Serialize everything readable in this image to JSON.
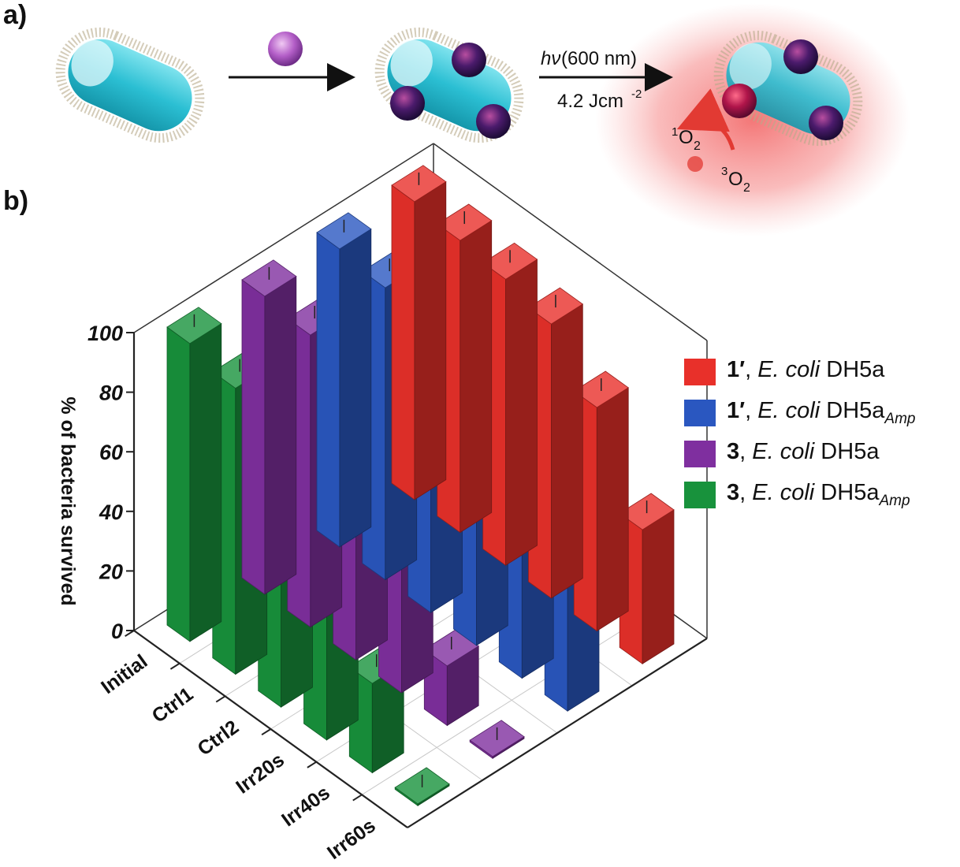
{
  "panel_a": {
    "label": "a)",
    "arrow2_top": "(600 nm)",
    "arrow2_hv": "hν",
    "arrow2_bottom": "4.2 Jcm",
    "arrow2_bottom_sup": "-2",
    "singlet_sup": "1",
    "singlet_main": "O",
    "singlet_sub": "2",
    "triplet_sup": "3",
    "triplet_main": "O",
    "triplet_sub": "2"
  },
  "panel_b": {
    "label": "b)"
  },
  "chart_data": {
    "type": "bar",
    "ylabel": "% of bacteria survived",
    "zlim": [
      0,
      100
    ],
    "z_ticks": [
      "0",
      "20",
      "40",
      "60",
      "80",
      "100"
    ],
    "categories": [
      "Initial",
      "Ctrl1",
      "Ctrl2",
      "Irr20s",
      "Irr40s",
      "Irr60s"
    ],
    "grid": true,
    "legend_position": "right",
    "series": [
      {
        "name": "1′, E. coli DH5a",
        "name_bold": "1′",
        "name_italic": "E. coli",
        "name_rest": " DH5a",
        "name_sub": "",
        "color": "#e8302a",
        "values": [
          100,
          98,
          96,
          92,
          75,
          45
        ]
      },
      {
        "name": "1′, E. coli DH5a Amp",
        "name_bold": "1′",
        "name_italic": "E. coli",
        "name_rest": " DH5a",
        "name_sub": "Amp",
        "color": "#2a57c0",
        "values": [
          100,
          98,
          95,
          90,
          75,
          50
        ]
      },
      {
        "name": "3, E. coli DH5a",
        "name_bold": "3",
        "name_italic": "E. coli",
        "name_rest": " DH5a",
        "name_sub": "",
        "color": "#7f2f9f",
        "values": [
          100,
          98,
          96,
          80,
          20,
          0.5
        ]
      },
      {
        "name": "3, E. coli DH5a Amp",
        "name_bold": "3",
        "name_italic": "E. coli",
        "name_rest": " DH5a",
        "name_sub": "Amp",
        "color": "#18923c",
        "values": [
          100,
          96,
          94,
          80,
          30,
          0.5
        ]
      }
    ]
  }
}
